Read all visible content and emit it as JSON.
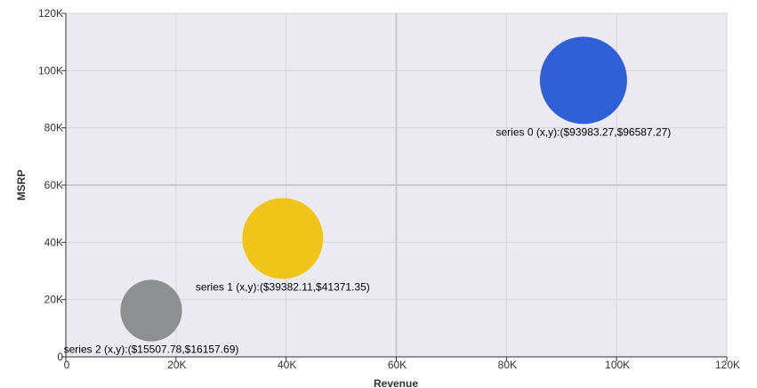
{
  "chart_data": {
    "type": "scatter",
    "subtype": "bubble",
    "xlabel": "Revenue",
    "ylabel": "MSRP",
    "xlim": [
      0,
      120000
    ],
    "ylim": [
      0,
      120000
    ],
    "x_ticks": [
      "0",
      "20K",
      "40K",
      "60K",
      "80K",
      "100K",
      "120K"
    ],
    "y_ticks": [
      "0",
      "20K",
      "40K",
      "60K",
      "80K",
      "100K",
      "120K"
    ],
    "x_tick_values": [
      0,
      20000,
      40000,
      60000,
      80000,
      100000,
      120000
    ],
    "y_tick_values": [
      0,
      20000,
      40000,
      60000,
      80000,
      100000,
      120000
    ],
    "grid": true,
    "plot_background": "#eaeaf0",
    "grid_color": "#d4d4da",
    "series": [
      {
        "x": 93983.27,
        "y": 96587.27,
        "size": 1.0,
        "color": "#3060d8",
        "label": "series 0 (x,y):($93983.27,$96587.27)"
      },
      {
        "x": 39382.11,
        "y": 41371.35,
        "size": 0.86,
        "color": "#f0c418",
        "label": "series 1 (x,y):($39382.11,$41371.35)"
      },
      {
        "x": 15507.78,
        "y": 16157.69,
        "size": 0.5,
        "color": "#8c9090",
        "label": "series 2 (x,y):($15507.78,$16157.69)"
      }
    ]
  }
}
